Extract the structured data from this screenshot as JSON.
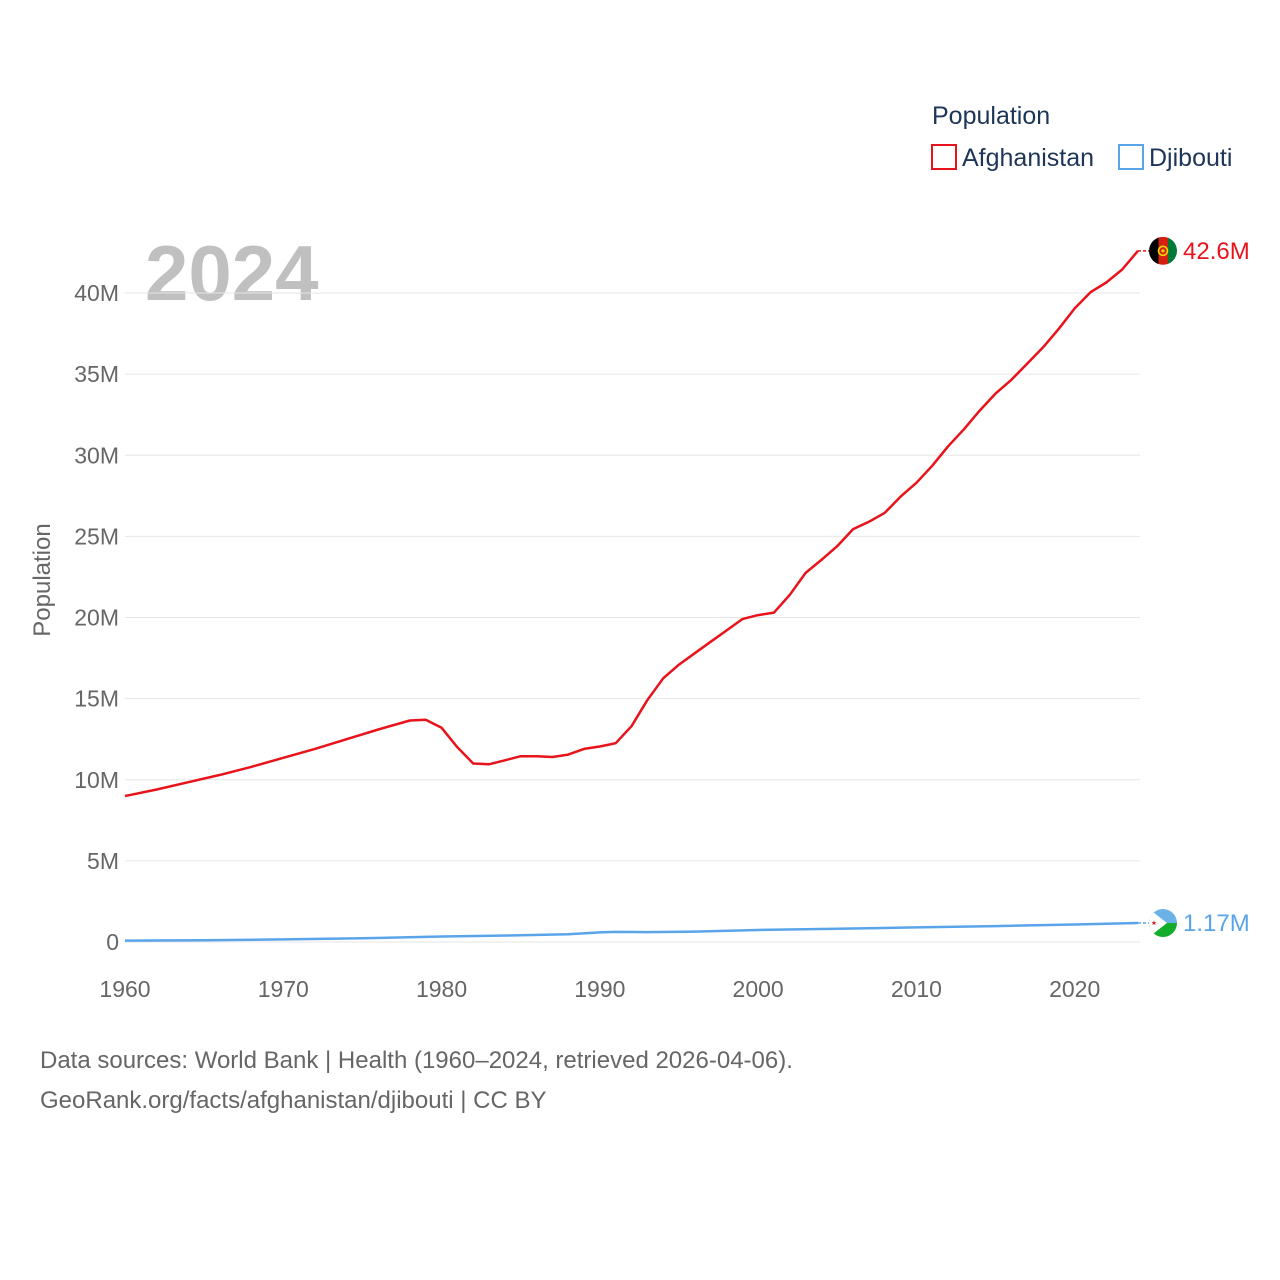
{
  "colors": {
    "afghanistan": "#e8131b",
    "djibouti": "#5aa5ea",
    "grid": "#e6e6e6",
    "text_muted": "#666666",
    "legend_text": "#1d3557",
    "year_label": "#c0c0c0"
  },
  "legend": {
    "title": "Population",
    "items": [
      {
        "name": "Afghanistan",
        "color": "#e8131b"
      },
      {
        "name": "Djibouti",
        "color": "#5aa5ea"
      }
    ]
  },
  "year_label": "2024",
  "footer": {
    "line1": "Data sources: World Bank | Health (1960–2024, retrieved 2026-04-06).",
    "line2": "GeoRank.org/facts/afghanistan/djibouti | CC BY"
  },
  "chart_data": {
    "type": "line",
    "title": "",
    "xlabel": "",
    "ylabel": "Population",
    "xlim": [
      1960,
      2024
    ],
    "ylim": [
      0,
      43000000
    ],
    "x_ticks": [
      1960,
      1970,
      1980,
      1990,
      2000,
      2010,
      2020
    ],
    "x_tick_labels": [
      "1960",
      "1970",
      "1980",
      "1990",
      "2000",
      "2010",
      "2020"
    ],
    "y_ticks": [
      0,
      5000000,
      10000000,
      15000000,
      20000000,
      25000000,
      30000000,
      35000000,
      40000000
    ],
    "y_tick_labels": [
      "0",
      "5M",
      "10M",
      "15M",
      "20M",
      "25M",
      "30M",
      "35M",
      "40M"
    ],
    "grid": true,
    "series": [
      {
        "name": "Afghanistan",
        "color": "#e8131b",
        "end_label": "42.6M",
        "flag_icon": "afghanistan-flag-icon",
        "x": [
          1960,
          1962,
          1964,
          1966,
          1968,
          1970,
          1972,
          1974,
          1976,
          1978,
          1979,
          1980,
          1981,
          1982,
          1983,
          1984,
          1985,
          1986,
          1987,
          1988,
          1989,
          1990,
          1991,
          1992,
          1993,
          1994,
          1995,
          1996,
          1997,
          1998,
          1999,
          2000,
          2001,
          2002,
          2003,
          2004,
          2005,
          2006,
          2007,
          2008,
          2009,
          2010,
          2011,
          2012,
          2013,
          2014,
          2015,
          2016,
          2017,
          2018,
          2019,
          2020,
          2021,
          2022,
          2023,
          2024
        ],
        "values": [
          9000000,
          9400000,
          9850000,
          10300000,
          10800000,
          11350000,
          11900000,
          12500000,
          13100000,
          13650000,
          13700000,
          13200000,
          12000000,
          11000000,
          10950000,
          11200000,
          11450000,
          11450000,
          11400000,
          11550000,
          11900000,
          12050000,
          12250000,
          13300000,
          14900000,
          16250000,
          17100000,
          17800000,
          18500000,
          19200000,
          19900000,
          20150000,
          20300000,
          21400000,
          22750000,
          23550000,
          24400000,
          25450000,
          25900000,
          26450000,
          27450000,
          28300000,
          29350000,
          30550000,
          31600000,
          32750000,
          33800000,
          34650000,
          35650000,
          36650000,
          37800000,
          39050000,
          40050000,
          40650000,
          41450000,
          42600000
        ]
      },
      {
        "name": "Djibouti",
        "color": "#5aa5ea",
        "end_label": "1.17M",
        "flag_icon": "djibouti-flag-icon",
        "x": [
          1960,
          1965,
          1970,
          1975,
          1980,
          1985,
          1988,
          1990,
          1991,
          1993,
          1996,
          2000,
          2005,
          2010,
          2015,
          2020,
          2024
        ],
        "values": [
          85000,
          105000,
          160000,
          230000,
          340000,
          410000,
          480000,
          590000,
          620000,
          610000,
          640000,
          740000,
          820000,
          900000,
          980000,
          1080000,
          1170000
        ]
      }
    ]
  }
}
